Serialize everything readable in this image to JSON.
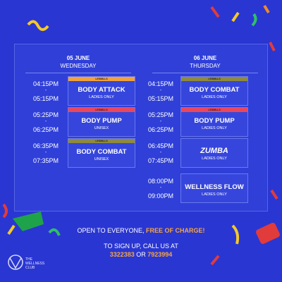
{
  "schedule": [
    {
      "date": "05 JUNE",
      "day": "WEDNESDAY",
      "classes": [
        {
          "start": "04:15PM",
          "end": "05:15PM",
          "tag": "LESMILLS",
          "color": "#f2a23a",
          "name": "BODY ATTACK",
          "note": "LADIES ONLY"
        },
        {
          "start": "05:25PM",
          "end": "06:25PM",
          "tag": "LESMILLS",
          "color": "#e8475c",
          "name": "BODY PUMP",
          "note": "UNISEX"
        },
        {
          "start": "06:35PM",
          "end": "07:35PM",
          "tag": "LESMILLS",
          "color": "#8f8a3c",
          "name": "BODY COMBAT",
          "note": "UNISEX"
        }
      ]
    },
    {
      "date": "06 JUNE",
      "day": "THURSDAY",
      "classes": [
        {
          "start": "04:15PM",
          "end": "05:15PM",
          "tag": "LESMILLS",
          "color": "#8f8a3c",
          "name": "BODY COMBAT",
          "note": "LADIES ONLY"
        },
        {
          "start": "05:25PM",
          "end": "06:25PM",
          "tag": "LESMILLS",
          "color": "#e8475c",
          "name": "BODY PUMP",
          "note": "LADIES ONLY"
        },
        {
          "start": "06:45PM",
          "end": "07:45PM",
          "name": "ZUMBA",
          "note": "LADIES ONLY"
        },
        {
          "start": "08:00PM",
          "end": "09:00PM",
          "name": "WELLNESS FLOW",
          "note": "LADIES ONLY"
        }
      ]
    }
  ],
  "footer": {
    "line1": "OPEN TO EVERYONE,",
    "highlight": "FREE OF CHARGE!",
    "line2": "TO SIGN UP, CALL US AT",
    "phone1": "3322383",
    "or": "OR",
    "phone2": "7923994"
  },
  "logo": {
    "line1": "THE",
    "line2": "WELLNESS",
    "line3": "CLUB"
  }
}
